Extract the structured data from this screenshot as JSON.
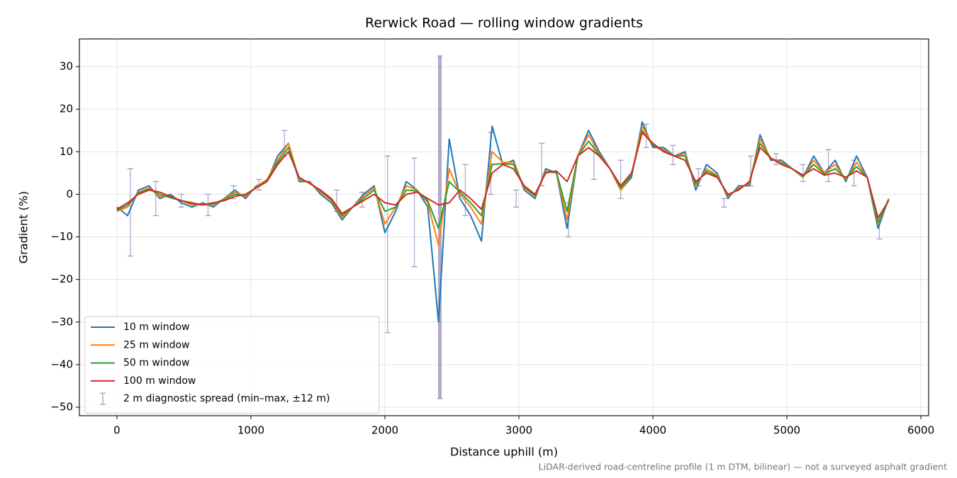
{
  "chart_data": {
    "type": "line",
    "title": "Rerwick Road — rolling window gradients",
    "x_label": "Distance uphill (m)",
    "y_label": "Gradient (%)",
    "note": "LiDAR-derived road-centreline profile (1 m DTM, bilinear) — not a surveyed asphalt gradient",
    "xlim": [
      -280,
      6058
    ],
    "ylim": [
      -52,
      36.5
    ],
    "xticks": [
      0,
      1000,
      2000,
      3000,
      4000,
      5000,
      6000
    ],
    "yticks": [
      {
        "value": -50,
        "label": "−50"
      },
      {
        "value": -40,
        "label": "−40"
      },
      {
        "value": -30,
        "label": "−30"
      },
      {
        "value": -20,
        "label": "−20"
      },
      {
        "value": -10,
        "label": "−10"
      },
      0,
      10,
      20,
      30
    ],
    "grid": true,
    "legend": "lower left",
    "x": [
      0,
      80,
      160,
      240,
      320,
      400,
      480,
      560,
      640,
      720,
      800,
      880,
      960,
      1040,
      1120,
      1200,
      1280,
      1360,
      1440,
      1520,
      1600,
      1680,
      1760,
      1840,
      1920,
      2000,
      2080,
      2160,
      2240,
      2320,
      2400,
      2480,
      2560,
      2640,
      2720,
      2800,
      2880,
      2960,
      3040,
      3120,
      3200,
      3280,
      3360,
      3440,
      3520,
      3600,
      3680,
      3760,
      3840,
      3920,
      4000,
      4080,
      4160,
      4240,
      4320,
      4400,
      4480,
      4560,
      4640,
      4720,
      4800,
      4880,
      4960,
      5040,
      5120,
      5200,
      5280,
      5360,
      5440,
      5520,
      5600,
      5680,
      5760
    ],
    "series": [
      {
        "name": "10 m window",
        "color": "#1f77b4",
        "values": [
          -3,
          -5,
          1,
          2,
          -1,
          0,
          -2,
          -3,
          -2,
          -3,
          -1,
          1,
          -1,
          2,
          3,
          9,
          12,
          3,
          3,
          0,
          -2,
          -6,
          -3,
          0,
          2,
          -9,
          -4,
          3,
          1,
          -3,
          -30,
          13,
          -1,
          -5,
          -11,
          16,
          7,
          8,
          1,
          -1,
          6,
          5,
          -8,
          9,
          15,
          10,
          6,
          1,
          4,
          17,
          11,
          11,
          9,
          10,
          1,
          7,
          5,
          -1,
          2,
          2,
          14,
          8,
          8,
          6,
          4,
          9,
          5,
          8,
          3,
          9,
          4,
          -8,
          -1
        ]
      },
      {
        "name": "25 m window",
        "color": "#ff7f0e",
        "values": [
          -4,
          -3,
          0.5,
          1.5,
          -0.5,
          -0.5,
          -1.5,
          -2.5,
          -2.5,
          -2.5,
          -1,
          0.5,
          -0.5,
          1.8,
          3.5,
          8,
          12,
          3.5,
          2.8,
          0.5,
          -1.5,
          -5.5,
          -3,
          -0.5,
          1.5,
          -7,
          -3,
          2,
          1,
          -2,
          -12,
          6,
          0,
          -3,
          -7,
          10,
          7.5,
          7.5,
          1.5,
          -0.5,
          5.5,
          5,
          -6,
          9,
          14,
          9.5,
          6,
          1,
          4.5,
          16,
          11.5,
          10.5,
          9,
          9.5,
          2,
          6,
          4.5,
          -0.5,
          1.5,
          2.5,
          13,
          8.5,
          7.5,
          6,
          4,
          8,
          5,
          7,
          3.5,
          7.5,
          4,
          -7,
          -1
        ]
      },
      {
        "name": "50 m window",
        "color": "#2ca02c",
        "values": [
          -3.8,
          -2.5,
          0.3,
          1.2,
          0,
          -0.8,
          -1.5,
          -2.2,
          -2.5,
          -2.2,
          -1.2,
          0,
          -0.2,
          1.6,
          3.2,
          7.5,
          11,
          3.8,
          2.6,
          0.8,
          -1.2,
          -5,
          -3,
          -1,
          1,
          -4,
          -3,
          1,
          0.8,
          -1.5,
          -8,
          3,
          0.5,
          -2,
          -5,
          7,
          7.2,
          7,
          1.8,
          -0.3,
          5.2,
          5.2,
          -4,
          9,
          12.5,
          9.2,
          6,
          1.5,
          4.5,
          15,
          11.5,
          10.2,
          9,
          9,
          2.5,
          5.5,
          4.2,
          -0.2,
          1.2,
          2.8,
          12,
          8.5,
          7.2,
          6,
          4.2,
          7,
          4.8,
          6,
          3.8,
          6.5,
          4,
          -6.5,
          -1.2
        ]
      },
      {
        "name": "100 m window",
        "color": "#d62728",
        "values": [
          -3.5,
          -2,
          0,
          1,
          0.5,
          -0.5,
          -1.5,
          -2,
          -2.5,
          -2,
          -1.5,
          -0.5,
          0,
          1.5,
          3,
          7,
          10,
          4,
          2.5,
          1,
          -1,
          -4.5,
          -3,
          -1.5,
          0,
          -2,
          -2.5,
          0,
          0.5,
          -1,
          -2.5,
          -2,
          1,
          -1,
          -3.5,
          5,
          7,
          6,
          2,
          0,
          5,
          5.5,
          3,
          9,
          11,
          9,
          6,
          2,
          5,
          14.5,
          12,
          10,
          9,
          8,
          3,
          5,
          4,
          0,
          1,
          3,
          11,
          8.5,
          7,
          6,
          4.5,
          6,
          4.5,
          5,
          4,
          5.5,
          4,
          -5.5,
          -1.5
        ]
      }
    ],
    "errorbars": {
      "name": "2 m diagnostic spread (min–max, ±12 m)",
      "color": "#a39bbf",
      "x": [
        100,
        290,
        480,
        680,
        870,
        1060,
        1250,
        1640,
        1830,
        2020,
        2220,
        2410,
        2600,
        2790,
        2980,
        3170,
        3370,
        3560,
        3760,
        3950,
        4150,
        4340,
        4530,
        4730,
        4920,
        5120,
        5310,
        5500,
        5690
      ],
      "low": [
        -14.5,
        -5,
        -3,
        -5,
        -1,
        1,
        9,
        -4,
        -3,
        -32.5,
        -17,
        -48,
        -5,
        0,
        -3,
        2,
        -10,
        3.5,
        -1,
        11,
        7,
        2,
        -3,
        2,
        7,
        3,
        3,
        2,
        -10.5
      ],
      "high": [
        6,
        3,
        0,
        0,
        2,
        3.5,
        15,
        1,
        0.5,
        9,
        8.5,
        32.5,
        7,
        14.5,
        1,
        12,
        -2,
        11.5,
        8,
        16.5,
        11.5,
        6,
        -1,
        9,
        9.5,
        7,
        10.5,
        8,
        -6
      ]
    }
  }
}
